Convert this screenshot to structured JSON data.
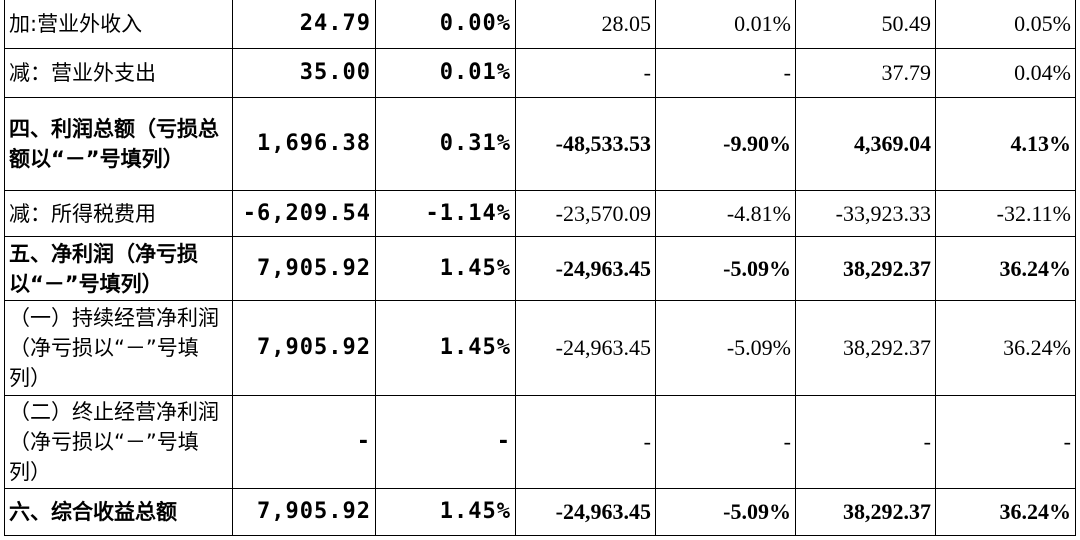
{
  "table": {
    "rows": [
      [
        "加:营业外收入",
        "24.79",
        "0.00%",
        "28.05",
        "0.01%",
        "50.49",
        "0.05%"
      ],
      [
        "减：营业外支出",
        "35.00",
        "0.01%",
        "-",
        "-",
        "37.79",
        "0.04%"
      ],
      [
        "四、利润总额（亏损总额以“－”号填列）",
        "1,696.38",
        "0.31%",
        "-48,533.53",
        "-9.90%",
        "4,369.04",
        "4.13%"
      ],
      [
        "减：所得税费用",
        "-6,209.54",
        "-1.14%",
        "-23,570.09",
        "-4.81%",
        "-33,923.33",
        "-32.11%"
      ],
      [
        "五、净利润（净亏损以“－”号填列）",
        "7,905.92",
        "1.45%",
        "-24,963.45",
        "-5.09%",
        "38,292.37",
        "36.24%"
      ],
      [
        "（一）持续经营净利润（净亏损以“－”号填列）",
        "7,905.92",
        "1.45%",
        "-24,963.45",
        "-5.09%",
        "38,292.37",
        "36.24%"
      ],
      [
        "（二）终止经营净利润（净亏损以“－”号填列）",
        "-",
        "-",
        "-",
        "-",
        "-",
        "-"
      ],
      [
        "六、综合收益总额",
        "7,905.92",
        "1.45%",
        "-24,963.45",
        "-5.09%",
        "38,292.37",
        "36.24%"
      ]
    ]
  }
}
